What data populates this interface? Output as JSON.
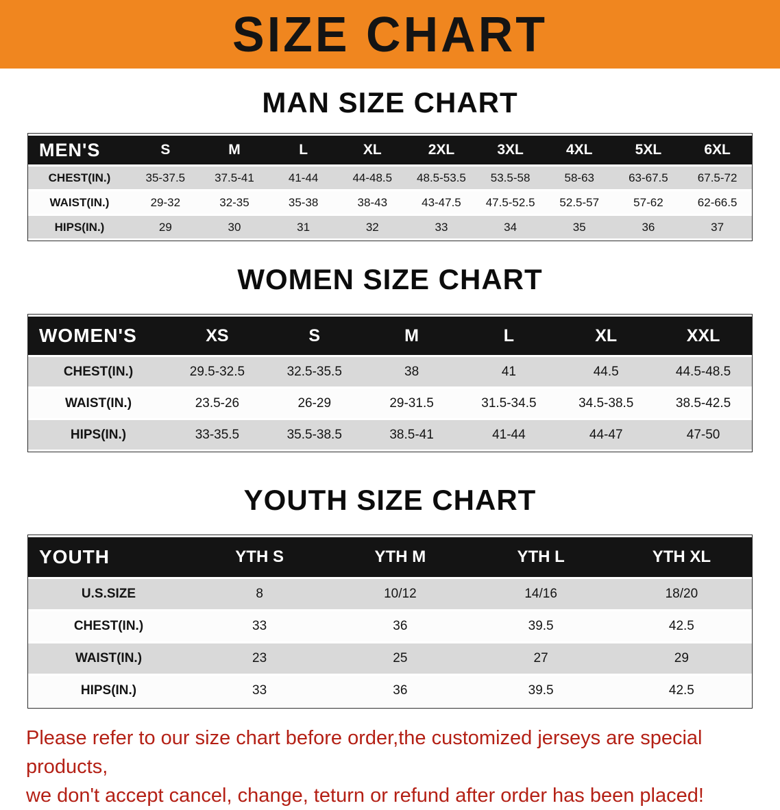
{
  "banner": {
    "title": "SIZE CHART"
  },
  "colors": {
    "banner_bg": "#f0861f",
    "table_header_bg": "#141414",
    "row_shaded": "#d9d9d9",
    "row_plain": "#fcfcfc",
    "note_text": "#b42015"
  },
  "tables": {
    "men": {
      "heading": "MAN SIZE CHART",
      "corner": "MEN'S",
      "columns": [
        "S",
        "M",
        "L",
        "XL",
        "2XL",
        "3XL",
        "4XL",
        "5XL",
        "6XL"
      ],
      "rows": [
        {
          "label": "CHEST(IN.)",
          "values": [
            "35-37.5",
            "37.5-41",
            "41-44",
            "44-48.5",
            "48.5-53.5",
            "53.5-58",
            "58-63",
            "63-67.5",
            "67.5-72"
          ]
        },
        {
          "label": "WAIST(IN.)",
          "values": [
            "29-32",
            "32-35",
            "35-38",
            "38-43",
            "43-47.5",
            "47.5-52.5",
            "52.5-57",
            "57-62",
            "62-66.5"
          ]
        },
        {
          "label": "HIPS(IN.)",
          "values": [
            "29",
            "30",
            "31",
            "32",
            "33",
            "34",
            "35",
            "36",
            "37"
          ]
        }
      ]
    },
    "women": {
      "heading": "WOMEN SIZE CHART",
      "corner": "WOMEN'S",
      "columns": [
        "XS",
        "S",
        "M",
        "L",
        "XL",
        "XXL"
      ],
      "rows": [
        {
          "label": "CHEST(IN.)",
          "values": [
            "29.5-32.5",
            "32.5-35.5",
            "38",
            "41",
            "44.5",
            "44.5-48.5"
          ]
        },
        {
          "label": "WAIST(IN.)",
          "values": [
            "23.5-26",
            "26-29",
            "29-31.5",
            "31.5-34.5",
            "34.5-38.5",
            "38.5-42.5"
          ]
        },
        {
          "label": "HIPS(IN.)",
          "values": [
            "33-35.5",
            "35.5-38.5",
            "38.5-41",
            "41-44",
            "44-47",
            "47-50"
          ]
        }
      ]
    },
    "youth": {
      "heading": "YOUTH SIZE CHART",
      "corner": "YOUTH",
      "columns": [
        "YTH S",
        "YTH M",
        "YTH L",
        "YTH XL"
      ],
      "rows": [
        {
          "label": "U.S.SIZE",
          "values": [
            "8",
            "10/12",
            "14/16",
            "18/20"
          ]
        },
        {
          "label": "CHEST(IN.)",
          "values": [
            "33",
            "36",
            "39.5",
            "42.5"
          ]
        },
        {
          "label": "WAIST(IN.)",
          "values": [
            "23",
            "25",
            "27",
            "29"
          ]
        },
        {
          "label": "HIPS(IN.)",
          "values": [
            "33",
            "36",
            "39.5",
            "42.5"
          ]
        }
      ]
    }
  },
  "footer": {
    "line1": "Please refer to our size chart before order,the customized jerseys are special products,",
    "line2": "we don't accept cancel, change, teturn or refund after order has been placed!"
  }
}
